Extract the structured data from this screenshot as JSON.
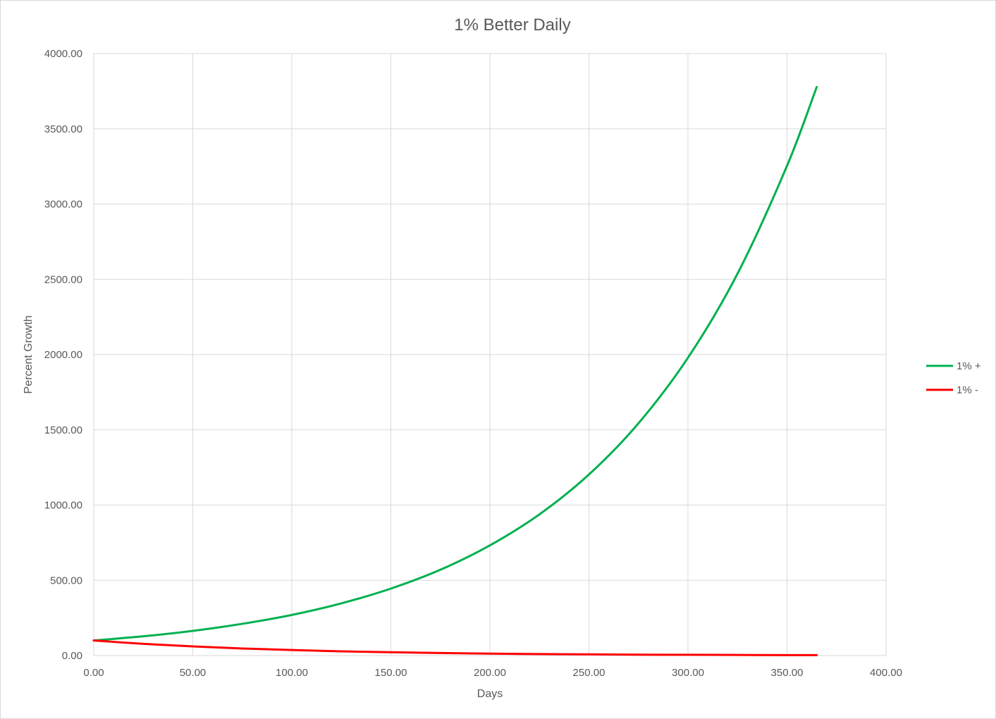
{
  "chart_data": {
    "type": "line",
    "title": "1% Better Daily",
    "xlabel": "Days",
    "ylabel": "Percent Growth",
    "xlim": [
      0,
      400
    ],
    "ylim": [
      0,
      4000
    ],
    "x_ticks": [
      "0.00",
      "50.00",
      "100.00",
      "150.00",
      "200.00",
      "250.00",
      "300.00",
      "350.00",
      "400.00"
    ],
    "y_ticks": [
      "0.00",
      "500.00",
      "1000.00",
      "1500.00",
      "2000.00",
      "2500.00",
      "3000.00",
      "3500.00",
      "4000.00"
    ],
    "grid": true,
    "legend_position": "right",
    "x": [
      0,
      25,
      50,
      75,
      100,
      125,
      150,
      175,
      200,
      225,
      250,
      275,
      300,
      325,
      350,
      365
    ],
    "series": [
      {
        "name": "1% +",
        "color": "#00b050",
        "values": [
          100,
          128,
          164,
          211,
          270,
          347,
          445,
          570,
          732,
          938,
          1203,
          1543,
          1979,
          2537,
          3254,
          3778
        ]
      },
      {
        "name": "1% -",
        "color": "#ff0000",
        "values": [
          100,
          78,
          61,
          47,
          37,
          28,
          22,
          17,
          13,
          10,
          8,
          6,
          5,
          4,
          3,
          3
        ]
      }
    ]
  }
}
